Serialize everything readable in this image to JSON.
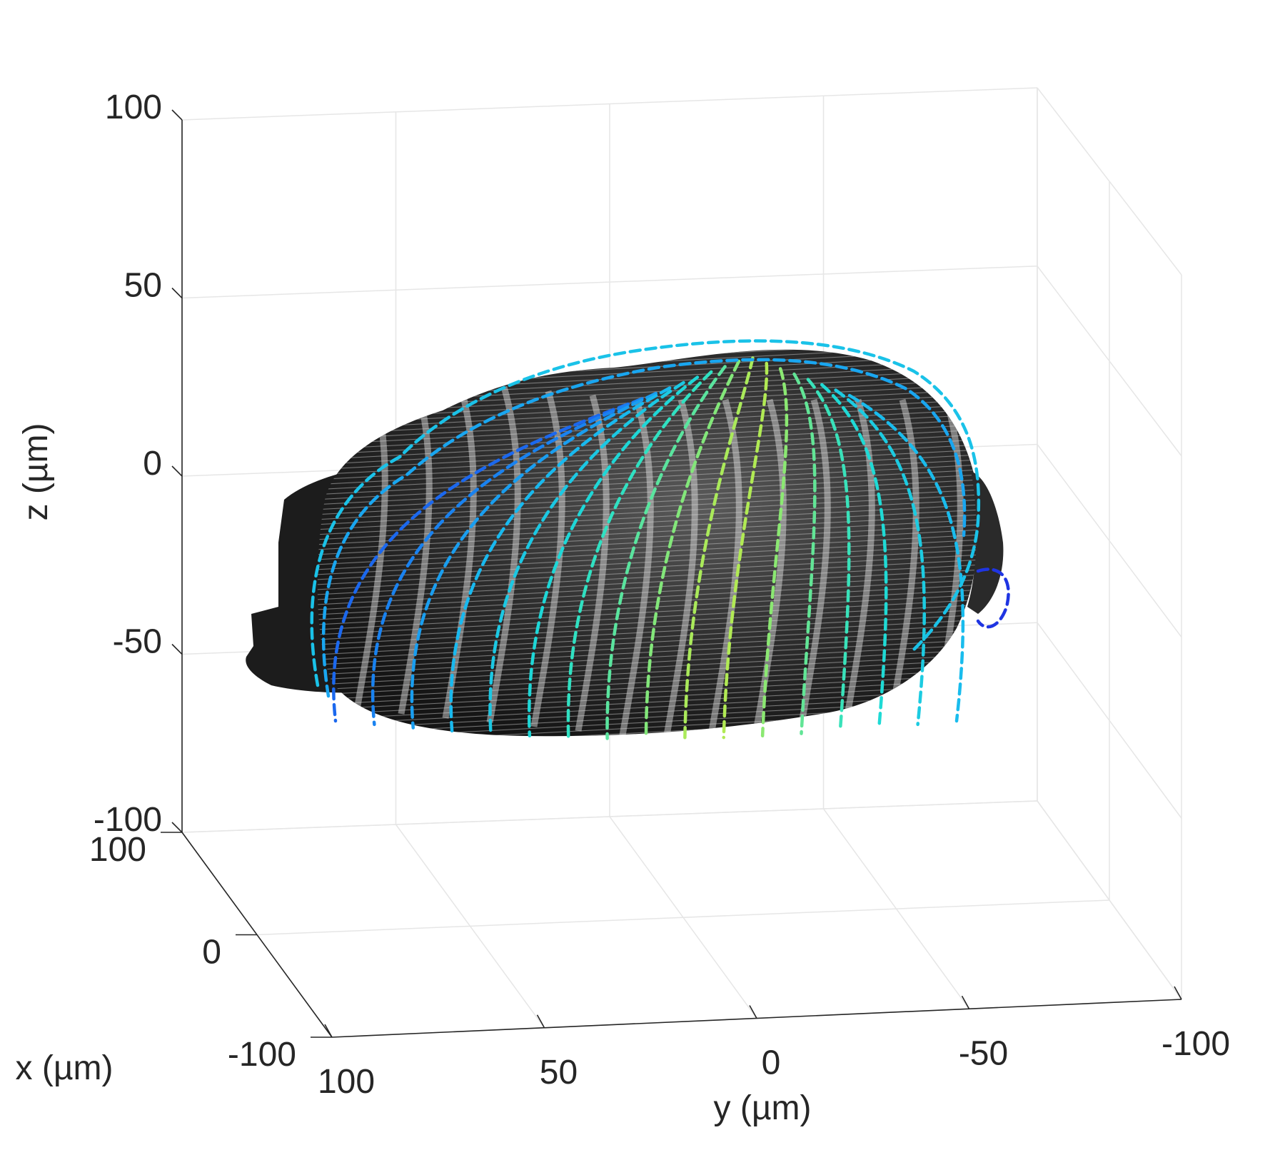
{
  "chart_data": {
    "type": "3d-surface-render",
    "xlabel": "x (µm)",
    "ylabel": "y (µm)",
    "zlabel": "z (µm)",
    "x_ticks": [
      "100",
      "0",
      "-100"
    ],
    "y_ticks": [
      "100",
      "50",
      "0",
      "-50",
      "-100"
    ],
    "z_ticks": [
      "100",
      "50",
      "0",
      "-50",
      "-100"
    ],
    "xlim": [
      -100,
      100
    ],
    "ylim": [
      -100,
      100
    ],
    "zlim": [
      -100,
      100
    ],
    "grid": true,
    "colormap": [
      "#1f2fe0",
      "#1a6ef0",
      "#18b8f0",
      "#20e0d0",
      "#8ee870",
      "#f2ee20"
    ]
  }
}
